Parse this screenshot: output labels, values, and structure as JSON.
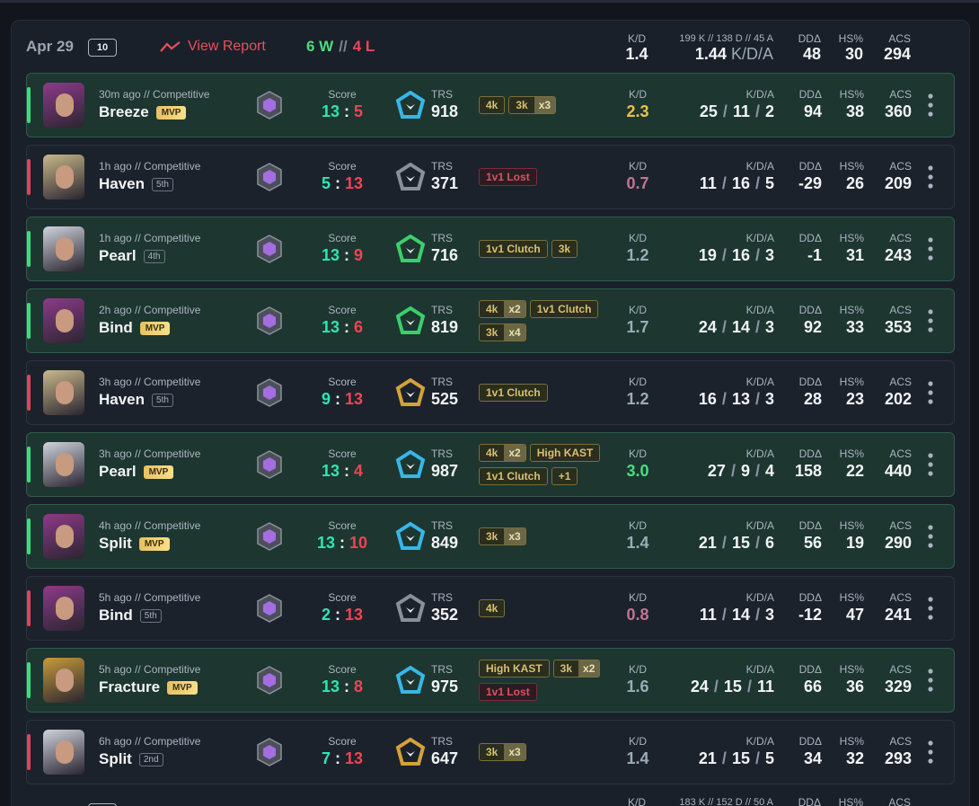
{
  "header": {
    "date": "Apr 29",
    "count": "10",
    "view_report": "View Report",
    "wins": "6 W",
    "sep": "//",
    "losses": "4 L",
    "kd": "1.4",
    "kda_detail": "199 K // 138 D // 45 A",
    "kda": "1.44",
    "dd": 48,
    "hs": 30,
    "acs": 294
  },
  "labels": {
    "score": "Score",
    "trs": "TRS",
    "kd": "K/D",
    "kda": "K/D/A",
    "dd": "DDΔ",
    "hs": "HS%",
    "acs": "ACS"
  },
  "separators": {
    "score": ":",
    "kda": "/"
  },
  "matches": [
    {
      "outcome": "win",
      "agent_color": "#8e3a8a",
      "time": "30m ago // Competitive",
      "map": "Breeze",
      "badge": "MVP",
      "score_won": 13,
      "score_lost": 5,
      "trs": 918,
      "trs_color": "#38b6e8",
      "tags": [
        {
          "text": "4k"
        },
        {
          "text": "3k",
          "count": "x3"
        }
      ],
      "kd": "2.3",
      "kd_color": "#f0c040",
      "kills": 25,
      "deaths": 11,
      "assists": 2,
      "dd": 94,
      "hs": 38,
      "acs": 360
    },
    {
      "outcome": "loss",
      "agent_color": "#c9b98a",
      "time": "1h ago // Competitive",
      "map": "Haven",
      "badge": "5th",
      "score_won": 5,
      "score_lost": 13,
      "trs": 371,
      "trs_color": "#8a9099",
      "tags": [
        {
          "text": "1v1 Lost",
          "tone": "loss"
        }
      ],
      "kd": "0.7",
      "kd_color": "#c27590",
      "kills": 11,
      "deaths": 16,
      "assists": 5,
      "dd": -29,
      "hs": 26,
      "acs": 209
    },
    {
      "outcome": "win",
      "agent_color": "#cfd3dc",
      "time": "1h ago // Competitive",
      "map": "Pearl",
      "badge": "4th",
      "score_won": 13,
      "score_lost": 9,
      "trs": 716,
      "trs_color": "#3ccf6a",
      "tags": [
        {
          "text": "1v1 Clutch"
        },
        {
          "text": "3k"
        }
      ],
      "kd": "1.2",
      "kd_color": "#9aacb8",
      "kills": 19,
      "deaths": 16,
      "assists": 3,
      "dd": -1,
      "hs": 31,
      "acs": 243
    },
    {
      "outcome": "win",
      "agent_color": "#8e3a8a",
      "time": "2h ago // Competitive",
      "map": "Bind",
      "badge": "MVP",
      "score_won": 13,
      "score_lost": 6,
      "trs": 819,
      "trs_color": "#3ccf6a",
      "tags": [
        {
          "text": "4k",
          "count": "x2"
        },
        {
          "text": "1v1 Clutch"
        },
        {
          "text": "3k",
          "count": "x4"
        }
      ],
      "kd": "1.7",
      "kd_color": "#9aacb8",
      "kills": 24,
      "deaths": 14,
      "assists": 3,
      "dd": 92,
      "hs": 33,
      "acs": 353
    },
    {
      "outcome": "loss",
      "agent_color": "#c9b98a",
      "time": "3h ago // Competitive",
      "map": "Haven",
      "badge": "5th",
      "score_won": 9,
      "score_lost": 13,
      "trs": 525,
      "trs_color": "#d4a23a",
      "tags": [
        {
          "text": "1v1 Clutch"
        }
      ],
      "kd": "1.2",
      "kd_color": "#9aacb8",
      "kills": 16,
      "deaths": 13,
      "assists": 3,
      "dd": 28,
      "hs": 23,
      "acs": 202
    },
    {
      "outcome": "win",
      "agent_color": "#cfd3dc",
      "time": "3h ago // Competitive",
      "map": "Pearl",
      "badge": "MVP",
      "score_won": 13,
      "score_lost": 4,
      "trs": 987,
      "trs_color": "#38b6e8",
      "tags": [
        {
          "text": "4k",
          "count": "x2"
        },
        {
          "text": "High KAST"
        },
        {
          "text": "1v1 Clutch"
        },
        {
          "text": "+1"
        }
      ],
      "kd": "3.0",
      "kd_color": "#4ade80",
      "kills": 27,
      "deaths": 9,
      "assists": 4,
      "dd": 158,
      "hs": 22,
      "acs": 440
    },
    {
      "outcome": "win",
      "agent_color": "#8e3a8a",
      "time": "4h ago // Competitive",
      "map": "Split",
      "badge": "MVP",
      "score_won": 13,
      "score_lost": 10,
      "trs": 849,
      "trs_color": "#38b6e8",
      "tags": [
        {
          "text": "3k",
          "count": "x3"
        }
      ],
      "kd": "1.4",
      "kd_color": "#9aacb8",
      "kills": 21,
      "deaths": 15,
      "assists": 6,
      "dd": 56,
      "hs": 19,
      "acs": 290
    },
    {
      "outcome": "loss",
      "agent_color": "#8e3a8a",
      "time": "5h ago // Competitive",
      "map": "Bind",
      "badge": "5th",
      "score_won": 2,
      "score_lost": 13,
      "trs": 352,
      "trs_color": "#8a9099",
      "tags": [
        {
          "text": "4k"
        }
      ],
      "kd": "0.8",
      "kd_color": "#c27590",
      "kills": 11,
      "deaths": 14,
      "assists": 3,
      "dd": -12,
      "hs": 47,
      "acs": 241
    },
    {
      "outcome": "win",
      "agent_color": "#c79a3a",
      "time": "5h ago // Competitive",
      "map": "Fracture",
      "badge": "MVP",
      "score_won": 13,
      "score_lost": 8,
      "trs": 975,
      "trs_color": "#38b6e8",
      "tags": [
        {
          "text": "High KAST"
        },
        {
          "text": "3k",
          "count": "x2"
        },
        {
          "text": "1v1 Lost",
          "tone": "loss"
        }
      ],
      "kd": "1.6",
      "kd_color": "#9aacb8",
      "kills": 24,
      "deaths": 15,
      "assists": 11,
      "dd": 66,
      "hs": 36,
      "acs": 329
    },
    {
      "outcome": "loss",
      "agent_color": "#cfd3dc",
      "time": "6h ago // Competitive",
      "map": "Split",
      "badge": "2nd",
      "score_won": 7,
      "score_lost": 13,
      "trs": 647,
      "trs_color": "#d4a23a",
      "tags": [
        {
          "text": "3k",
          "count": "x3"
        }
      ],
      "kd": "1.4",
      "kd_color": "#9aacb8",
      "kills": 21,
      "deaths": 15,
      "assists": 5,
      "dd": 34,
      "hs": 32,
      "acs": 293
    }
  ],
  "next_group": {
    "kda_detail": "183 K // 152 D // 50 A"
  }
}
